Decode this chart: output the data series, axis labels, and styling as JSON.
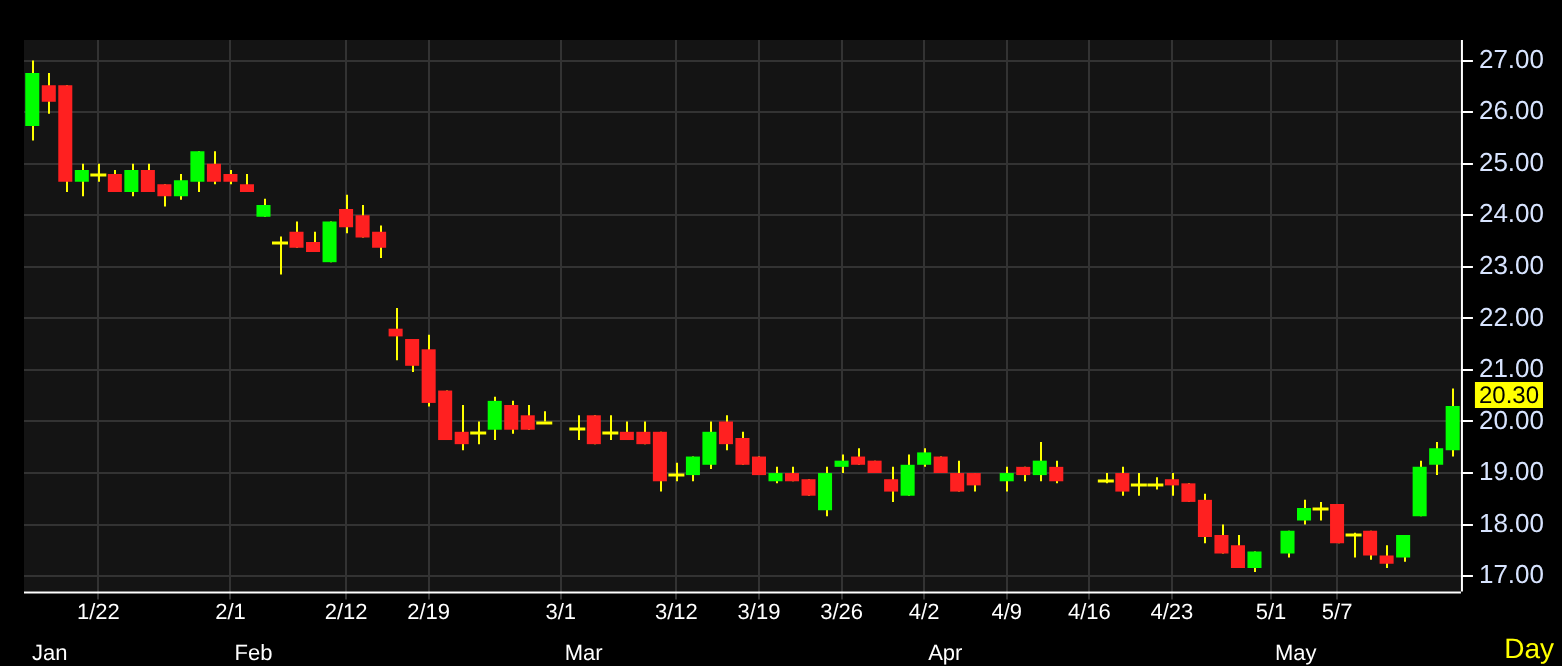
{
  "chart_data": {
    "type": "candlestick",
    "xlabel": "Day",
    "legend": false,
    "grid": true,
    "categories": [
      null,
      null,
      null,
      null,
      "1/22",
      null,
      null,
      null,
      null,
      null,
      null,
      null,
      "2/1",
      null,
      null,
      null,
      null,
      null,
      null,
      "2/12",
      null,
      null,
      null,
      null,
      "2/19",
      null,
      null,
      null,
      null,
      null,
      null,
      null,
      "3/1",
      null,
      null,
      null,
      null,
      null,
      null,
      "3/12",
      null,
      null,
      null,
      null,
      "3/19",
      null,
      null,
      null,
      null,
      "3/26",
      null,
      null,
      null,
      null,
      "4/2",
      null,
      null,
      null,
      null,
      "4/9",
      null,
      null,
      null,
      null,
      "4/16",
      null,
      null,
      null,
      null,
      "4/23",
      null,
      null,
      null,
      null,
      null,
      "5/1",
      null,
      null,
      null,
      "5/7",
      null,
      null,
      null,
      null,
      null,
      null,
      null
    ],
    "ohlc": [
      [
        25.73,
        27.0,
        25.45,
        26.76
      ],
      [
        26.52,
        26.76,
        25.97,
        26.2
      ],
      [
        26.52,
        26.52,
        24.45,
        24.65
      ],
      [
        24.65,
        25.0,
        24.37,
        24.88
      ],
      [
        24.8,
        25.0,
        24.65,
        24.8
      ],
      [
        24.8,
        24.88,
        24.45,
        24.45
      ],
      [
        24.45,
        25.0,
        24.37,
        24.88
      ],
      [
        24.88,
        25.0,
        24.45,
        24.45
      ],
      [
        24.6,
        24.6,
        24.17,
        24.37
      ],
      [
        24.37,
        24.8,
        24.3,
        24.68
      ],
      [
        24.65,
        25.24,
        24.45,
        25.24
      ],
      [
        25.0,
        25.24,
        24.6,
        24.65
      ],
      [
        24.8,
        24.88,
        24.6,
        24.65
      ],
      [
        24.6,
        24.8,
        24.45,
        24.45
      ],
      [
        23.97,
        24.32,
        23.97,
        24.2
      ],
      [
        23.47,
        23.59,
        22.85,
        23.47
      ],
      [
        23.68,
        23.88,
        23.37,
        23.37
      ],
      [
        23.48,
        23.68,
        23.29,
        23.29
      ],
      [
        23.09,
        23.88,
        23.09,
        23.88
      ],
      [
        24.12,
        24.4,
        23.65,
        23.77
      ],
      [
        24.0,
        24.2,
        23.57,
        23.57
      ],
      [
        23.68,
        23.8,
        23.17,
        23.37
      ],
      [
        21.8,
        22.2,
        21.19,
        21.65
      ],
      [
        21.6,
        21.6,
        20.96,
        21.08
      ],
      [
        21.4,
        21.68,
        20.29,
        20.36
      ],
      [
        20.6,
        20.6,
        19.64,
        19.64
      ],
      [
        19.8,
        20.32,
        19.44,
        19.56
      ],
      [
        19.8,
        20.0,
        19.56,
        19.8
      ],
      [
        19.84,
        20.48,
        19.64,
        20.4
      ],
      [
        20.32,
        20.4,
        19.76,
        19.84
      ],
      [
        20.12,
        20.32,
        19.84,
        19.84
      ],
      [
        20.0,
        20.2,
        20.0,
        20.0
      ],
      null,
      [
        19.88,
        20.12,
        19.64,
        19.88
      ],
      [
        20.12,
        20.12,
        19.56,
        19.56
      ],
      [
        19.8,
        20.12,
        19.64,
        19.8
      ],
      [
        19.8,
        20.0,
        19.64,
        19.64
      ],
      [
        19.8,
        20.0,
        19.56,
        19.56
      ],
      [
        19.8,
        19.8,
        18.64,
        18.84
      ],
      [
        19.0,
        19.2,
        18.84,
        19.0
      ],
      [
        18.96,
        19.32,
        18.84,
        19.32
      ],
      [
        19.16,
        20.0,
        19.08,
        19.8
      ],
      [
        20.0,
        20.12,
        19.44,
        19.56
      ],
      [
        19.68,
        19.8,
        19.16,
        19.16
      ],
      [
        19.32,
        19.32,
        18.96,
        18.96
      ],
      [
        18.84,
        19.12,
        18.8,
        19.0
      ],
      [
        19.0,
        19.12,
        18.84,
        18.84
      ],
      [
        18.88,
        18.88,
        18.56,
        18.56
      ],
      [
        18.28,
        19.12,
        18.16,
        19.0
      ],
      [
        19.12,
        19.36,
        19.0,
        19.24
      ],
      [
        19.32,
        19.48,
        19.16,
        19.16
      ],
      [
        19.24,
        19.24,
        19.0,
        19.0
      ],
      [
        18.88,
        19.12,
        18.44,
        18.64
      ],
      [
        18.56,
        19.36,
        18.56,
        19.16
      ],
      [
        19.16,
        19.48,
        19.12,
        19.4
      ],
      [
        19.32,
        19.32,
        19.0,
        19.0
      ],
      [
        19.0,
        19.24,
        18.64,
        18.64
      ],
      [
        19.0,
        19.0,
        18.64,
        18.76
      ],
      null,
      [
        18.84,
        19.12,
        18.64,
        19.0
      ],
      [
        19.12,
        19.12,
        18.84,
        18.96
      ],
      [
        18.96,
        19.6,
        18.84,
        19.24
      ],
      [
        19.12,
        19.24,
        18.8,
        18.84
      ],
      null,
      null,
      [
        18.88,
        19.0,
        18.8,
        18.88
      ],
      [
        19.0,
        19.12,
        18.56,
        18.64
      ],
      [
        18.8,
        19.0,
        18.56,
        18.8
      ],
      [
        18.8,
        18.92,
        18.68,
        18.8
      ],
      [
        18.88,
        19.0,
        18.56,
        18.76
      ],
      [
        18.8,
        18.8,
        18.44,
        18.44
      ],
      [
        18.48,
        18.6,
        17.64,
        17.76
      ],
      [
        17.8,
        18.0,
        17.44,
        17.44
      ],
      [
        17.6,
        17.8,
        17.16,
        17.16
      ],
      [
        17.16,
        17.48,
        17.08,
        17.48
      ],
      null,
      [
        17.44,
        17.88,
        17.36,
        17.88
      ],
      [
        18.08,
        18.48,
        18.0,
        18.32
      ],
      [
        18.32,
        18.44,
        18.08,
        18.32
      ],
      [
        18.4,
        18.4,
        17.64,
        17.64
      ],
      [
        17.8,
        17.84,
        17.36,
        17.8
      ],
      [
        17.88,
        17.88,
        17.32,
        17.4
      ],
      [
        17.4,
        17.6,
        17.16,
        17.24
      ],
      [
        17.36,
        17.8,
        17.28,
        17.8
      ],
      [
        18.16,
        19.24,
        18.16,
        19.12
      ],
      [
        19.16,
        19.6,
        18.96,
        19.48
      ],
      [
        19.44,
        20.64,
        19.32,
        20.3
      ]
    ],
    "colors": [
      "#00ff00",
      "#ff2020",
      "#ff2020",
      "#00ff00",
      "#ffff00",
      "#ff2020",
      "#00ff00",
      "#ff2020",
      "#ff2020",
      "#00ff00",
      "#00ff00",
      "#ff2020",
      "#ff2020",
      "#ff2020",
      "#00ff00",
      "#ffff00",
      "#ff2020",
      "#ff2020",
      "#00ff00",
      "#ff2020",
      "#ff2020",
      "#ff2020",
      "#ff2020",
      "#ff2020",
      "#ff2020",
      "#ff2020",
      "#ff2020",
      "#ffff00",
      "#00ff00",
      "#ff2020",
      "#ff2020",
      "#ffff00",
      null,
      "#ffff00",
      "#ff2020",
      "#ffff00",
      "#ff2020",
      "#ff2020",
      "#ff2020",
      "#ffff00",
      "#00ff00",
      "#00ff00",
      "#ff2020",
      "#ff2020",
      "#ff2020",
      "#00ff00",
      "#ff2020",
      "#ff2020",
      "#00ff00",
      "#00ff00",
      "#ff2020",
      "#ff2020",
      "#ff2020",
      "#00ff00",
      "#00ff00",
      "#ff2020",
      "#ff2020",
      "#ff2020",
      null,
      "#00ff00",
      "#ff2020",
      "#00ff00",
      "#ff2020",
      null,
      null,
      "#ffff00",
      "#ff2020",
      "#ffff00",
      "#ffff00",
      "#ff2020",
      "#ff2020",
      "#ff2020",
      "#ff2020",
      "#ff2020",
      "#00ff00",
      null,
      "#00ff00",
      "#00ff00",
      "#ffff00",
      "#ff2020",
      "#ffff00",
      "#ff2020",
      "#ff2020",
      "#00ff00",
      "#00ff00",
      "#00ff00",
      "#00ff00"
    ],
    "ylim": [
      16.7,
      27.4
    ],
    "yticks": [
      {
        "value": 17,
        "label": "17.00"
      },
      {
        "value": 18,
        "label": "18.00"
      },
      {
        "value": 19,
        "label": "19.00"
      },
      {
        "value": 20,
        "label": "20.00"
      },
      {
        "value": 21,
        "label": "21.00"
      },
      {
        "value": 22,
        "label": "22.00"
      },
      {
        "value": 23,
        "label": "23.00"
      },
      {
        "value": 24,
        "label": "24.00"
      },
      {
        "value": 25,
        "label": "25.00"
      },
      {
        "value": 26,
        "label": "26.00"
      },
      {
        "value": 27,
        "label": "27.00"
      }
    ],
    "annotations": [
      "20.30",
      "Jan",
      "Feb",
      "Mar",
      "Apr",
      "May"
    ]
  }
}
